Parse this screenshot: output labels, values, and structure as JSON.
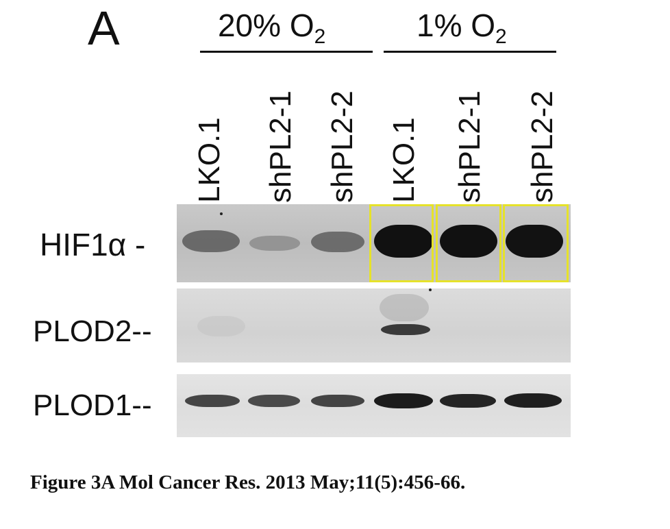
{
  "panel_letter": "A",
  "conditions": [
    {
      "label": "20% O",
      "subscript": "2"
    },
    {
      "label": "1% O",
      "subscript": "2"
    }
  ],
  "lanes": [
    "LKO.1",
    "shPL2-1",
    "shPL2-2",
    "LKO.1",
    "shPL2-1",
    "shPL2-2"
  ],
  "rows": [
    "HIF1α -",
    "PLOD2--",
    "PLOD1--"
  ],
  "caption": "Figure 3A Mol Cancer Res. 2013 May;11(5):456-66.",
  "colors": {
    "highlight": "#e6e22a"
  }
}
